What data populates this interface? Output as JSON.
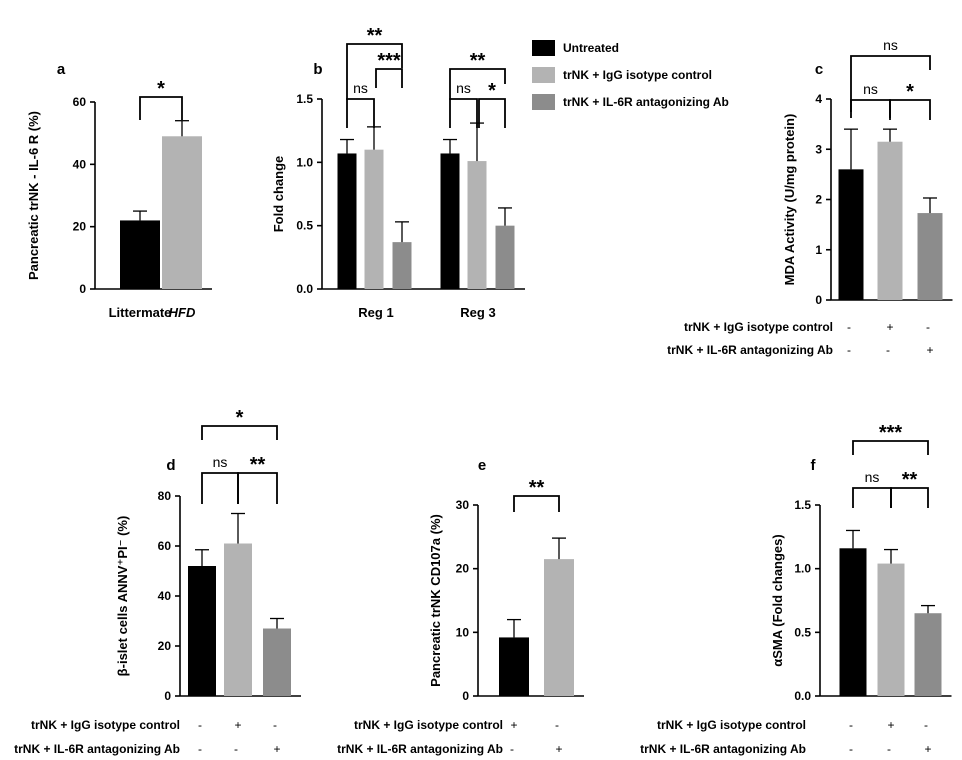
{
  "colors": {
    "untreated": "#000000",
    "igg": "#b3b3b3",
    "il6r": "#8c8c8c",
    "control": "#000000",
    "treated": "#b3b3b3"
  },
  "legend": {
    "items": [
      {
        "label": "Untreated",
        "color": "#000000"
      },
      {
        "label": "trNK + IgG isotype control",
        "color": "#b3b3b3"
      },
      {
        "label": "trNK + IL-6R antagonizing Ab",
        "color": "#8c8c8c"
      }
    ]
  },
  "chart_data": [
    {
      "panel": "a",
      "type": "bar",
      "ylabel": "Pancreatic trNK - IL-6 R (%)",
      "ylim": [
        0,
        60
      ],
      "yticks": [
        "0",
        "20",
        "40",
        "60"
      ],
      "categories": [
        "Littermate",
        "HFD"
      ],
      "values": [
        22,
        49
      ],
      "errors": [
        3,
        5
      ],
      "colors": [
        "#000000",
        "#b3b3b3"
      ],
      "brackets": [
        {
          "from": 0,
          "to": 1,
          "label": "*"
        }
      ]
    },
    {
      "panel": "b",
      "type": "bar",
      "ylabel": "Fold change",
      "ylim": [
        0,
        1.5
      ],
      "yticks": [
        "0.0",
        "0.5",
        "1.0",
        "1.5"
      ],
      "categories": [
        "Reg 1",
        "Reg 3"
      ],
      "series": [
        {
          "name": "Untreated",
          "values": [
            1.07,
            1.07
          ],
          "errors": [
            0.11,
            0.11
          ]
        },
        {
          "name": "trNK + IgG isotype control",
          "values": [
            1.1,
            1.01
          ],
          "errors": [
            0.18,
            0.3
          ]
        },
        {
          "name": "trNK + IL-6R antagonizing Ab",
          "values": [
            0.37,
            0.5
          ],
          "errors": [
            0.16,
            0.14
          ]
        }
      ],
      "brackets": [
        {
          "group": 0,
          "from": 0,
          "to": 1,
          "label": "ns"
        },
        {
          "group": 0,
          "from": 1,
          "to": 2,
          "label": "***"
        },
        {
          "group": 0,
          "from": 0,
          "to": 2,
          "label": "**"
        },
        {
          "group": 1,
          "from": 0,
          "to": 1,
          "label": "ns"
        },
        {
          "group": 1,
          "from": 1,
          "to": 2,
          "label": "*"
        },
        {
          "group": 1,
          "from": 0,
          "to": 2,
          "label": "**"
        }
      ]
    },
    {
      "panel": "c",
      "type": "bar",
      "ylabel": "MDA Activity (U/mg protein)",
      "ylim": [
        0,
        4
      ],
      "yticks": [
        "0",
        "1",
        "2",
        "3",
        "4"
      ],
      "values": [
        2.6,
        3.15,
        1.73
      ],
      "errors": [
        0.8,
        0.25,
        0.3
      ],
      "colors": [
        "#000000",
        "#b3b3b3",
        "#8c8c8c"
      ],
      "conditions": [
        {
          "label": "trNK + IgG isotype control",
          "marks": [
            "-",
            "+",
            "-"
          ]
        },
        {
          "label": "trNK + IL-6R antagonizing Ab",
          "marks": [
            "-",
            "-",
            "+"
          ]
        }
      ],
      "brackets": [
        {
          "from": 0,
          "to": 1,
          "label": "ns"
        },
        {
          "from": 1,
          "to": 2,
          "label": "*"
        },
        {
          "from": 0,
          "to": 2,
          "label": "ns"
        }
      ]
    },
    {
      "panel": "d",
      "type": "bar",
      "ylabel": "β-islet cells ANNV⁺PI⁻ (%)",
      "ylim": [
        0,
        80
      ],
      "yticks": [
        "0",
        "20",
        "40",
        "60",
        "80"
      ],
      "values": [
        52,
        61,
        27
      ],
      "errors": [
        6.5,
        12,
        4
      ],
      "colors": [
        "#000000",
        "#b3b3b3",
        "#8c8c8c"
      ],
      "conditions": [
        {
          "label": "trNK + IgG isotype control",
          "marks": [
            "-",
            "+",
            "-"
          ]
        },
        {
          "label": "trNK + IL-6R antagonizing Ab",
          "marks": [
            "-",
            "-",
            "+"
          ]
        }
      ],
      "brackets": [
        {
          "from": 0,
          "to": 1,
          "label": "ns"
        },
        {
          "from": 1,
          "to": 2,
          "label": "**"
        },
        {
          "from": 0,
          "to": 2,
          "label": "*"
        }
      ]
    },
    {
      "panel": "e",
      "type": "bar",
      "ylabel": "Pancreatic trNK CD107a (%)",
      "ylim": [
        0,
        30
      ],
      "yticks": [
        "0",
        "10",
        "20",
        "30"
      ],
      "values": [
        9.2,
        21.5
      ],
      "errors": [
        2.8,
        3.3
      ],
      "colors": [
        "#000000",
        "#b3b3b3"
      ],
      "conditions": [
        {
          "label": "trNK + IgG isotype control",
          "marks": [
            "+",
            "-"
          ]
        },
        {
          "label": "trNK + IL-6R antagonizing Ab",
          "marks": [
            "-",
            "+"
          ]
        }
      ],
      "brackets": [
        {
          "from": 0,
          "to": 1,
          "label": "**"
        }
      ]
    },
    {
      "panel": "f",
      "type": "bar",
      "ylabel": "αSMA (Fold changes)",
      "ylim": [
        0,
        1.5
      ],
      "yticks": [
        "0.0",
        "0.5",
        "1.0",
        "1.5"
      ],
      "values": [
        1.16,
        1.04,
        0.65
      ],
      "errors": [
        0.14,
        0.11,
        0.06
      ],
      "colors": [
        "#000000",
        "#b3b3b3",
        "#8c8c8c"
      ],
      "conditions": [
        {
          "label": "trNK + IgG isotype control",
          "marks": [
            "-",
            "+",
            "-"
          ]
        },
        {
          "label": "trNK + IL-6R antagonizing Ab",
          "marks": [
            "-",
            "-",
            "+"
          ]
        }
      ],
      "brackets": [
        {
          "from": 0,
          "to": 1,
          "label": "ns"
        },
        {
          "from": 1,
          "to": 2,
          "label": "**"
        },
        {
          "from": 0,
          "to": 2,
          "label": "***"
        }
      ]
    }
  ]
}
